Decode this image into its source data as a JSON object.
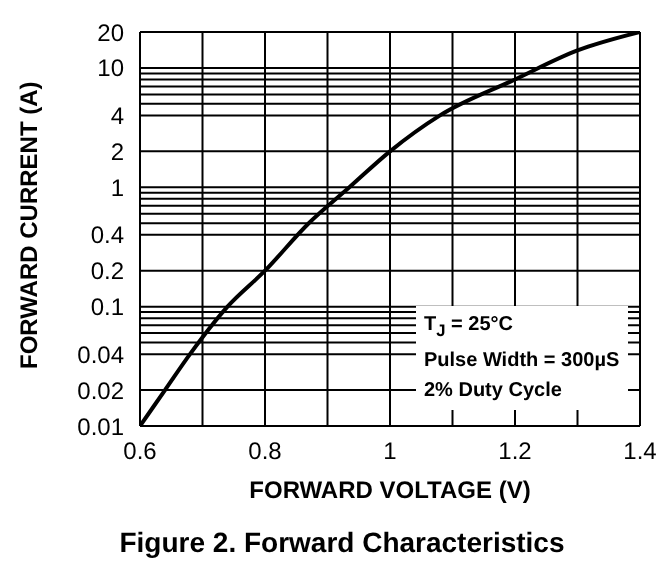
{
  "chart_data": {
    "type": "line",
    "title": "Figure 2. Forward Characteristics",
    "xlabel": "FORWARD VOLTAGE (V)",
    "ylabel": "FORWARD CURRENT (A)",
    "annotations": [
      "T$_{J}$ = 25°C",
      "Pulse Width = 300µS",
      "2% Duty Cycle"
    ],
    "x": [
      0.6,
      0.64,
      0.68,
      0.74,
      0.8,
      0.87,
      0.935,
      1.0,
      1.08,
      1.2,
      1.3,
      1.4
    ],
    "series": [
      {
        "color": "#000000",
        "values": [
          0.01,
          0.02,
          0.04,
          0.1,
          0.2,
          0.5,
          1,
          2,
          4,
          8,
          14,
          20
        ]
      }
    ],
    "xlim": [
      0.6,
      1.4
    ],
    "xticks": [
      0.6,
      {
        "value": 0.7,
        "label": null
      },
      0.8,
      {
        "value": 0.9,
        "label": null
      },
      1,
      {
        "value": 1.1,
        "label": null
      },
      1.2,
      {
        "value": 1.3,
        "label": null
      },
      1.4
    ],
    "ylim": [
      0.01,
      20
    ],
    "yticks": [
      0.01,
      0.02,
      0.04,
      {
        "value": 0.05,
        "label": null
      },
      {
        "value": 0.06,
        "label": null
      },
      {
        "value": 0.07,
        "label": null
      },
      {
        "value": 0.08,
        "label": null
      },
      {
        "value": 0.09,
        "label": null
      },
      0.1,
      0.2,
      0.4,
      {
        "value": 0.5,
        "label": null
      },
      {
        "value": 0.6,
        "label": null
      },
      {
        "value": 0.7,
        "label": null
      },
      {
        "value": 0.8,
        "label": null
      },
      {
        "value": 0.9,
        "label": null
      },
      1,
      2,
      4,
      {
        "value": 5,
        "label": null
      },
      {
        "value": 6,
        "label": null
      },
      {
        "value": 7,
        "label": null
      },
      {
        "value": 8,
        "label": null
      },
      {
        "value": 9,
        "label": null
      },
      10,
      20
    ],
    "log": true,
    "grid": true,
    "legend": false,
    "marker": "none",
    "line_style": "solid"
  }
}
